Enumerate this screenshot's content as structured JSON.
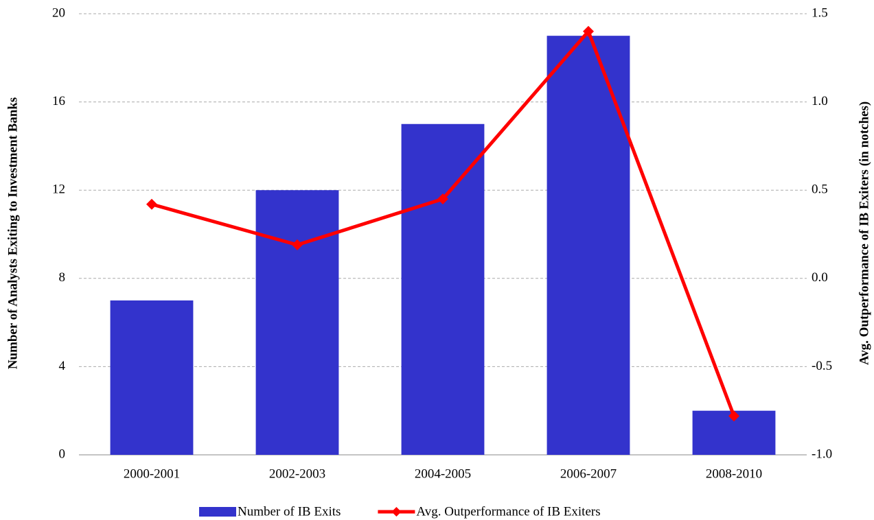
{
  "chart_data": {
    "type": "bar",
    "y_label": "Number of  Analysts Exiting to Investment Banks",
    "y2_label": "Avg. Outperformance of IB Exiters (in notches)",
    "categories": [
      "2000-2001",
      "2002-2003",
      "2004-2005",
      "2006-2007",
      "2008-2010"
    ],
    "series": [
      {
        "name": "Number of IB Exits",
        "type": "bar",
        "color": "#3333cc",
        "values": [
          7,
          12,
          15,
          19,
          2
        ]
      },
      {
        "name": "Avg. Outperformance of IB Exiters",
        "type": "line",
        "axis": "y2",
        "color": "#ff0000",
        "values": [
          0.42,
          0.19,
          0.45,
          1.4,
          -0.78
        ]
      }
    ],
    "ylim": [
      0,
      20
    ],
    "yticks": [
      0,
      4,
      8,
      12,
      16,
      20
    ],
    "y2lim": [
      -1,
      1.5
    ],
    "y2ticks": [
      {
        "value": -1,
        "label": "-1.0"
      },
      -0.5,
      {
        "value": 0,
        "label": "0.0"
      },
      0.5,
      {
        "value": 1,
        "label": "1.0"
      },
      1.5
    ],
    "grid": true,
    "legend": "bottom"
  }
}
